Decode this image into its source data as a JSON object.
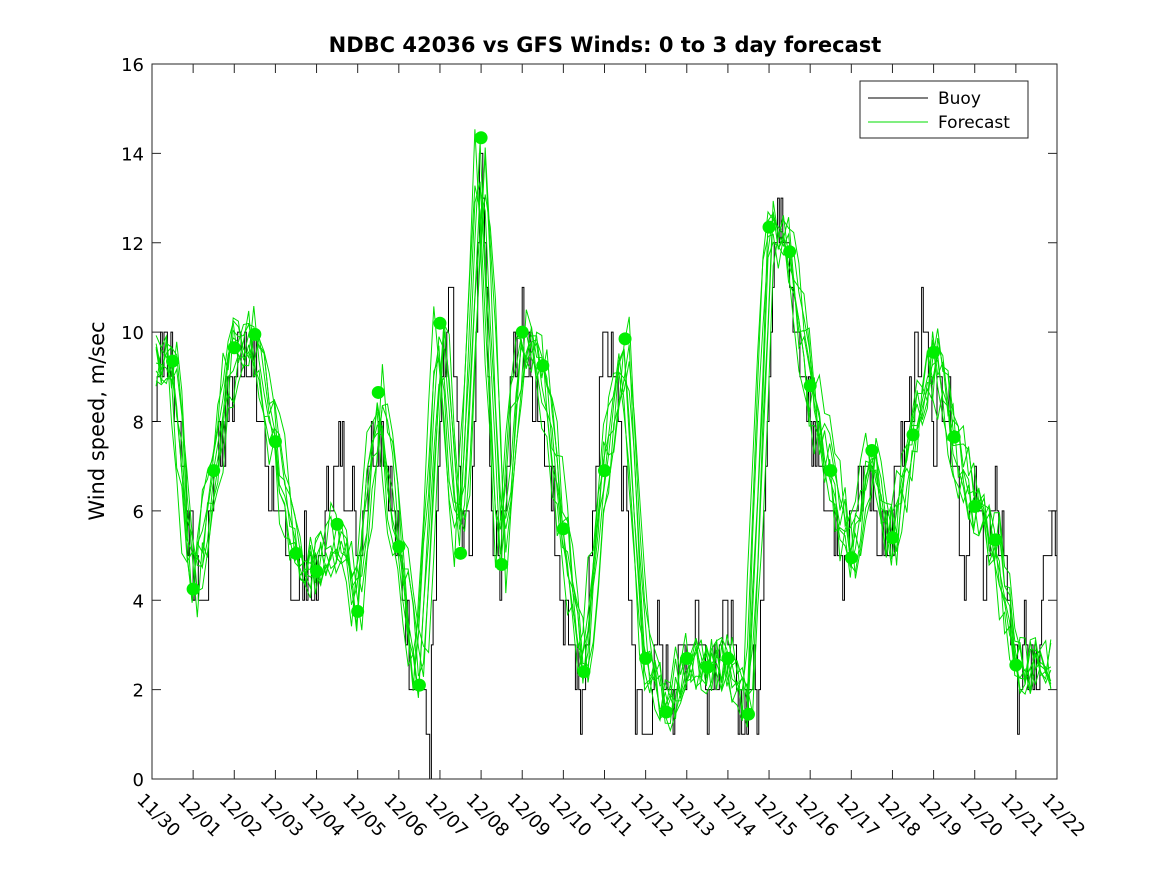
{
  "chart_data": {
    "type": "line",
    "title": "NDBC 42036 vs GFS Winds: 0 to 3 day forecast",
    "xlabel": "",
    "ylabel": "Wind speed, m/sec",
    "ylim": [
      0,
      16
    ],
    "xlim": [
      0,
      22
    ],
    "yticks": [
      0,
      2,
      4,
      6,
      8,
      10,
      12,
      14,
      16
    ],
    "xtick_labels": [
      "11/30",
      "12/01",
      "12/02",
      "12/03",
      "12/04",
      "12/05",
      "12/06",
      "12/07",
      "12/08",
      "12/09",
      "12/10",
      "12/11",
      "12/12",
      "12/13",
      "12/14",
      "12/15",
      "12/16",
      "12/17",
      "12/18",
      "12/19",
      "12/20",
      "12/21",
      "12/22"
    ],
    "legend": {
      "position": "top-right",
      "entries": [
        {
          "label": "Buoy",
          "color": "#000000"
        },
        {
          "label": "Forecast",
          "color": "#00dd00"
        }
      ]
    },
    "colors": {
      "buoy": "#000000",
      "forecast": "#00dd00",
      "points": "#00ee00"
    },
    "series": [
      {
        "name": "Buoy",
        "x": [
          0,
          0.25,
          0.5,
          0.75,
          1,
          1.25,
          1.5,
          1.75,
          2,
          2.25,
          2.5,
          2.75,
          3,
          3.25,
          3.5,
          3.75,
          4,
          4.25,
          4.5,
          4.75,
          5,
          5.25,
          5.5,
          5.75,
          6,
          6.25,
          6.5,
          6.75,
          7,
          7.25,
          7.5,
          7.75,
          8,
          8.25,
          8.5,
          8.75,
          9,
          9.25,
          9.5,
          9.75,
          10,
          10.25,
          10.5,
          10.75,
          11,
          11.25,
          11.5,
          11.75,
          12,
          12.25,
          12.5,
          12.75,
          13,
          13.25,
          13.5,
          13.75,
          14,
          14.25,
          14.5,
          14.75,
          15,
          15.25,
          15.5,
          15.75,
          16,
          16.25,
          16.5,
          16.75,
          17,
          17.25,
          17.5,
          17.75,
          18,
          18.25,
          18.5,
          18.75,
          19,
          19.25,
          19.5,
          19.75,
          20,
          20.25,
          20.5,
          20.75,
          21,
          21.25,
          21.5,
          21.75,
          22
        ],
        "values": [
          8,
          10,
          9,
          7,
          5,
          4,
          7,
          8,
          9,
          10,
          9,
          7,
          6,
          5,
          4,
          5,
          4,
          6,
          7,
          7,
          5,
          7,
          8,
          7,
          5,
          3,
          2,
          1,
          8,
          11,
          6,
          5,
          15,
          6,
          5,
          9,
          10,
          9,
          8,
          6,
          4,
          3,
          1,
          7,
          10,
          9,
          6,
          2,
          1,
          3,
          2,
          2,
          3,
          4,
          2,
          3,
          4,
          1,
          2,
          2,
          10,
          13,
          12,
          9,
          8,
          7,
          6,
          5,
          6,
          7,
          6,
          5,
          6,
          8,
          9,
          10,
          8,
          9,
          7,
          5,
          6,
          5,
          6,
          5,
          2,
          3,
          2,
          5,
          6
        ]
      },
      {
        "name": "Forecast",
        "x": [
          0.5,
          1,
          1.5,
          2,
          2.5,
          3,
          3.5,
          4,
          4.5,
          5,
          5.5,
          6,
          6.5,
          7,
          7.5,
          8,
          8.5,
          9,
          9.5,
          10,
          10.5,
          11,
          11.5,
          12,
          12.5,
          13,
          13.5,
          14,
          14.5,
          15,
          15.5,
          16,
          16.5,
          17,
          17.5,
          18,
          18.5,
          19,
          19.5,
          20,
          20.5,
          21
        ],
        "values": [
          9.35,
          4.25,
          6.9,
          9.65,
          9.95,
          7.55,
          5.05,
          4.65,
          5.7,
          3.75,
          8.65,
          5.2,
          2.1,
          10.2,
          5.05,
          14.35,
          4.8,
          10.0,
          9.25,
          5.6,
          2.4,
          6.9,
          9.85,
          2.7,
          1.5,
          2.7,
          2.5,
          2.7,
          1.45,
          12.35,
          11.8,
          8.8,
          6.9,
          4.95,
          7.35,
          5.4,
          7.7,
          9.55,
          7.65,
          6.1,
          5.35,
          2.55
        ]
      }
    ]
  }
}
